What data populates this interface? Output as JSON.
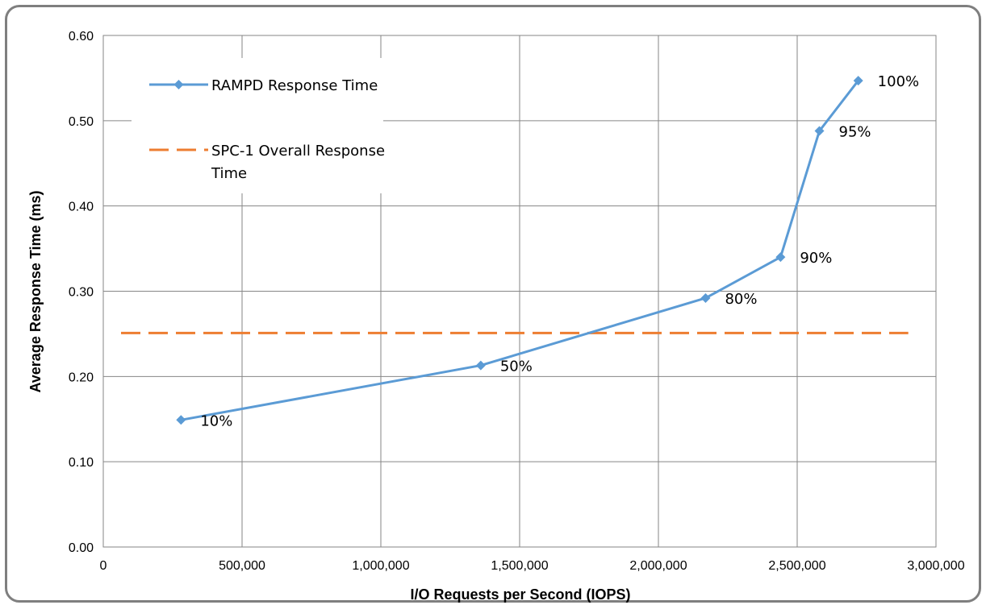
{
  "chart_data": {
    "type": "line",
    "xlabel": "I/O Requests per Second (IOPS)",
    "ylabel": "Average Response Time (ms)",
    "xlim": [
      0,
      3000000
    ],
    "ylim": [
      0,
      0.6
    ],
    "x_ticks": [
      0,
      500000,
      1000000,
      1500000,
      2000000,
      2500000,
      3000000
    ],
    "x_tick_labels": [
      "0",
      "500,000",
      "1,000,000",
      "1,500,000",
      "2,000,000",
      "2,500,000",
      "3,000,000"
    ],
    "y_ticks": [
      0,
      0.1,
      0.2,
      0.3,
      0.4,
      0.5,
      0.6
    ],
    "y_tick_labels": [
      "0.00",
      "0.10",
      "0.20",
      "0.30",
      "0.40",
      "0.50",
      "0.60"
    ],
    "grid": true,
    "legend_position": "top-left",
    "series": [
      {
        "name": "RAMPD Response Time",
        "color": "#5b9bd5",
        "marker": "diamond",
        "x": [
          280000,
          1360000,
          2170000,
          2440000,
          2580000,
          2720000
        ],
        "y": [
          0.149,
          0.213,
          0.292,
          0.34,
          0.488,
          0.547
        ],
        "point_labels": [
          "10%",
          "50%",
          "80%",
          "90%",
          "95%",
          "100%"
        ]
      },
      {
        "name": "SPC-1 Overall Response Time",
        "color": "#ed7d31",
        "style": "dashed",
        "x": [
          0,
          2720000
        ],
        "y": [
          0.251,
          0.251
        ]
      }
    ]
  }
}
